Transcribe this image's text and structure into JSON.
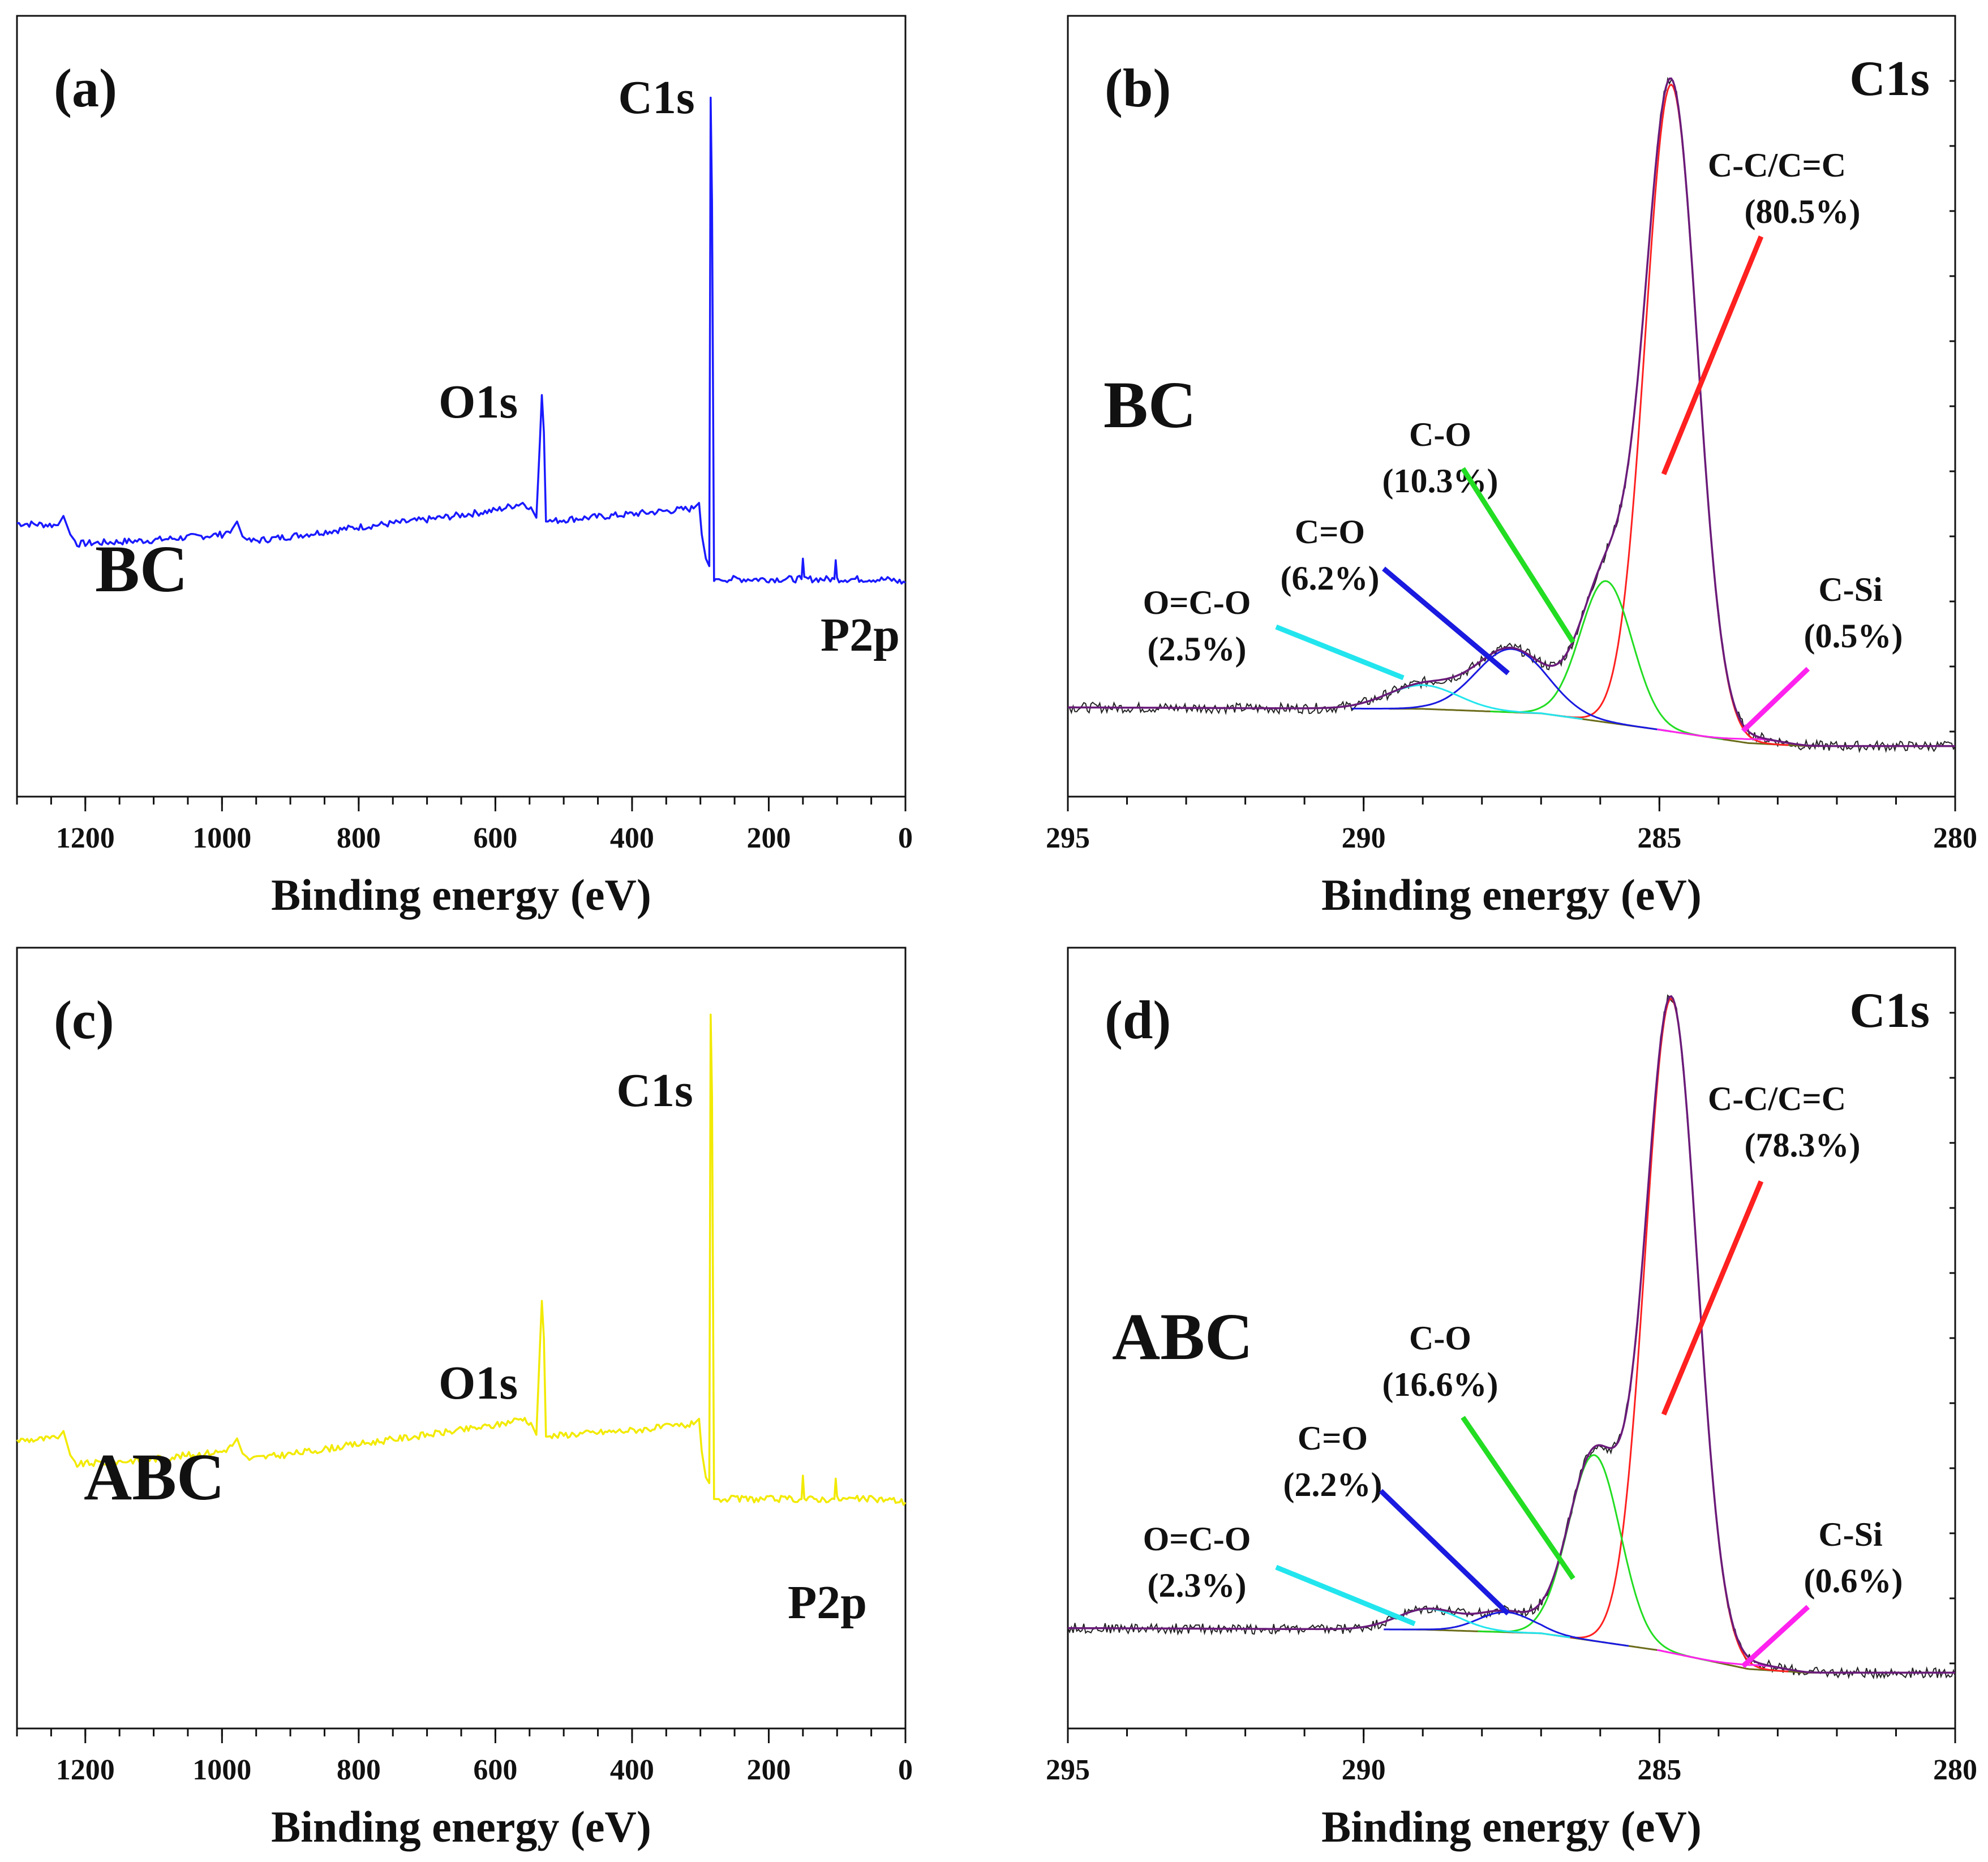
{
  "colors": {
    "survey_bc": "#1a1aff",
    "survey_abc": "#f2ea00",
    "envelope": "#6a1b7a",
    "raw": "#222222",
    "background": "#6b6b1a",
    "cc": "#ff2020",
    "co": "#22dd22",
    "c_double_o": "#1a1ae0",
    "ococ": "#22e5ee",
    "csi": "#ff22ee"
  },
  "chart_data": [
    {
      "panel": "(a)",
      "type": "line",
      "sample": "BC",
      "xlabel": "Binding energy (eV)",
      "xlim": [
        1300,
        0
      ],
      "x_reversed": true,
      "x_ticks": [
        1200,
        1000,
        800,
        600,
        400,
        200,
        0
      ],
      "color_key": "survey_bc",
      "peak_labels": [
        {
          "text": "C1s",
          "x": 284.8
        },
        {
          "text": "O1s",
          "x": 532
        },
        {
          "text": "P2p",
          "x": 133
        }
      ],
      "series": [
        {
          "x": [
            1300,
            1240,
            1232,
            1222,
            1212,
            1200,
            1100,
            1000,
            985,
            978,
            970,
            960,
            900,
            800,
            700,
            600,
            560,
            548,
            540,
            535,
            532,
            529,
            526,
            520,
            500,
            400,
            310,
            302,
            298,
            292,
            287,
            285,
            283,
            280,
            278,
            276,
            270,
            200,
            152,
            150,
            148,
            104,
            102,
            100,
            50,
            20,
            0
          ],
          "y": [
            0.735,
            0.73,
            0.755,
            0.705,
            0.68,
            0.681,
            0.69,
            0.705,
            0.72,
            0.74,
            0.7,
            0.686,
            0.7,
            0.725,
            0.745,
            0.77,
            0.79,
            0.778,
            0.75,
            0.95,
            1.08,
            0.98,
            0.74,
            0.74,
            0.745,
            0.76,
            0.775,
            0.79,
            0.705,
            0.64,
            0.62,
            1.88,
            1.6,
            0.58,
            0.585,
            0.585,
            0.585,
            0.585,
            0.585,
            0.64,
            0.585,
            0.585,
            0.636,
            0.585,
            0.585,
            0.583,
            0.575
          ]
        }
      ]
    },
    {
      "panel": "(b)",
      "type": "line",
      "sample": "BC",
      "title": "C1s",
      "xlabel": "Binding energy (eV)",
      "xlim": [
        295,
        280
      ],
      "x_reversed": true,
      "x_ticks": [
        295,
        290,
        285,
        280
      ],
      "baseline": {
        "x": [
          295,
          289,
          287,
          285,
          283.5,
          282.5,
          280
        ],
        "y": [
          0.12,
          0.118,
          0.112,
          0.09,
          0.072,
          0.068,
          0.068
        ]
      },
      "components": [
        {
          "label": "C-C/C=C",
          "percent": "(80.5%)",
          "center": 284.8,
          "height": 0.87,
          "width": 0.62,
          "color_key": "cc"
        },
        {
          "label": "C-O",
          "percent": "(10.3%)",
          "center": 285.9,
          "height": 0.19,
          "width": 0.62,
          "color_key": "co"
        },
        {
          "label": "C=O",
          "percent": "(6.2%)",
          "center": 287.5,
          "height": 0.085,
          "width": 0.85,
          "color_key": "c_double_o"
        },
        {
          "label": "O=C-O",
          "percent": "(2.5%)",
          "center": 289.0,
          "height": 0.032,
          "width": 0.85,
          "color_key": "ococ"
        },
        {
          "label": "C-Si",
          "percent": "(0.5%)",
          "center": 283.3,
          "height": 0.006,
          "width": 0.55,
          "color_key": "csi"
        }
      ]
    },
    {
      "panel": "(c)",
      "type": "line",
      "sample": "ABC",
      "xlabel": "Binding energy (eV)",
      "xlim": [
        1300,
        0
      ],
      "x_reversed": true,
      "x_ticks": [
        1200,
        1000,
        800,
        600,
        400,
        200,
        0
      ],
      "color_key": "survey_abc",
      "peak_labels": [
        {
          "text": "C1s",
          "x": 284.8
        },
        {
          "text": "O1s",
          "x": 532
        },
        {
          "text": "P2p",
          "x": 133
        }
      ],
      "series": [
        {
          "x": [
            1300,
            1240,
            1232,
            1222,
            1212,
            1200,
            1100,
            1000,
            985,
            978,
            970,
            960,
            900,
            800,
            700,
            600,
            560,
            548,
            540,
            535,
            532,
            529,
            526,
            520,
            500,
            400,
            310,
            302,
            298,
            292,
            287,
            285,
            283,
            280,
            278,
            276,
            270,
            200,
            152,
            150,
            148,
            104,
            102,
            100,
            50,
            20,
            0
          ],
          "y": [
            0.775,
            0.78,
            0.8,
            0.735,
            0.71,
            0.712,
            0.725,
            0.745,
            0.76,
            0.78,
            0.74,
            0.725,
            0.738,
            0.765,
            0.79,
            0.815,
            0.835,
            0.822,
            0.79,
            1.02,
            1.15,
            1.05,
            0.785,
            0.785,
            0.79,
            0.802,
            0.818,
            0.833,
            0.745,
            0.675,
            0.66,
            1.92,
            1.7,
            0.617,
            0.617,
            0.617,
            0.617,
            0.617,
            0.617,
            0.68,
            0.617,
            0.617,
            0.672,
            0.617,
            0.617,
            0.615,
            0.608
          ]
        }
      ]
    },
    {
      "panel": "(d)",
      "type": "line",
      "sample": "ABC",
      "title": "C1s",
      "xlabel": "Binding energy (eV)",
      "xlim": [
        295,
        280
      ],
      "x_reversed": true,
      "x_ticks": [
        295,
        290,
        285,
        280
      ],
      "baseline": {
        "x": [
          295,
          289,
          287,
          285,
          283.5,
          282.5,
          280
        ],
        "y": [
          0.135,
          0.133,
          0.128,
          0.105,
          0.08,
          0.075,
          0.075
        ]
      },
      "components": [
        {
          "label": "C-C/C=C",
          "percent": "(78.3%)",
          "center": 284.8,
          "height": 0.88,
          "width": 0.62,
          "color_key": "cc"
        },
        {
          "label": "C-O",
          "percent": "(16.6%)",
          "center": 286.1,
          "height": 0.25,
          "width": 0.62,
          "color_key": "co"
        },
        {
          "label": "C=O",
          "percent": "(2.2%)",
          "center": 287.6,
          "height": 0.027,
          "width": 0.65,
          "color_key": "c_double_o"
        },
        {
          "label": "O=C-O",
          "percent": "(2.3%)",
          "center": 288.9,
          "height": 0.028,
          "width": 0.75,
          "color_key": "ococ"
        },
        {
          "label": "C-Si",
          "percent": "(0.6%)",
          "center": 283.3,
          "height": 0.006,
          "width": 0.55,
          "color_key": "csi"
        }
      ]
    }
  ]
}
